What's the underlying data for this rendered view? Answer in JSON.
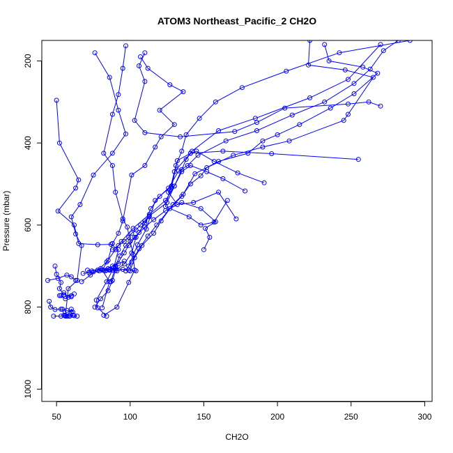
{
  "chart_data": {
    "type": "scatter",
    "title": "ATOM3 Northeast_Pacific_2 CH2O",
    "xlabel": "CH2O",
    "ylabel": "Pressure (mbar)",
    "xlim": [
      40,
      305
    ],
    "ylim": [
      1030,
      150
    ],
    "y_axis": "inverted",
    "x_ticks": [
      50,
      100,
      150,
      200,
      250,
      300
    ],
    "y_ticks": [
      200,
      400,
      600,
      800,
      1000
    ],
    "series_color": "#0000ff",
    "marker": "open-circle",
    "grid": false,
    "legend": "none",
    "series": [
      {
        "points": [
          [
            97,
            163
          ],
          [
            95,
            218
          ],
          [
            92,
            282
          ],
          [
            88,
            330
          ],
          [
            82,
            425
          ],
          [
            88,
            455
          ],
          [
            90,
            520
          ],
          [
            95,
            585
          ],
          [
            98,
            605
          ],
          [
            100,
            640
          ],
          [
            102,
            672
          ],
          [
            103,
            710
          ],
          [
            99,
            740
          ],
          [
            91,
            800
          ],
          [
            82,
            820
          ]
        ]
      },
      {
        "points": [
          [
            76,
            180
          ],
          [
            86,
            240
          ],
          [
            92,
            320
          ],
          [
            97,
            378
          ],
          [
            88,
            425
          ],
          [
            75,
            478
          ],
          [
            66,
            550
          ],
          [
            60,
            580
          ],
          [
            63,
            622
          ],
          [
            67,
            650
          ],
          [
            64,
            735
          ],
          [
            58,
            755
          ],
          [
            56,
            822
          ]
        ]
      },
      {
        "points": [
          [
            50,
            296
          ],
          [
            52,
            400
          ],
          [
            65,
            490
          ],
          [
            63,
            510
          ],
          [
            51,
            566
          ],
          [
            62,
            600
          ],
          [
            65,
            645
          ],
          [
            78,
            648
          ],
          [
            87,
            647
          ],
          [
            92,
            660
          ],
          [
            89,
            703
          ],
          [
            84,
            738
          ],
          [
            77,
            783
          ],
          [
            78,
            802
          ],
          [
            84,
            822
          ]
        ]
      },
      {
        "points": [
          [
            107,
            190
          ],
          [
            112,
            218
          ],
          [
            127,
            258
          ],
          [
            136,
            275
          ],
          [
            120,
            320
          ],
          [
            130,
            355
          ],
          [
            121,
            385
          ],
          [
            117,
            410
          ],
          [
            110,
            455
          ],
          [
            101,
            478
          ],
          [
            95,
            590
          ],
          [
            92,
            620
          ],
          [
            88,
            645
          ],
          [
            85,
            686
          ],
          [
            81,
            710
          ],
          [
            86,
            738
          ],
          [
            81,
            802
          ]
        ]
      },
      {
        "points": [
          [
            110,
            180
          ],
          [
            106,
            212
          ],
          [
            110,
            250
          ],
          [
            103,
            345
          ],
          [
            110,
            375
          ],
          [
            134,
            385
          ],
          [
            171,
            372
          ],
          [
            186,
            350
          ],
          [
            205,
            315
          ],
          [
            248,
            305
          ],
          [
            262,
            300
          ],
          [
            270,
            310
          ]
        ]
      },
      {
        "points": [
          [
            290,
            150
          ],
          [
            242,
            180
          ],
          [
            206,
            225
          ],
          [
            176,
            265
          ],
          [
            158,
            300
          ],
          [
            147,
            340
          ],
          [
            138,
            380
          ],
          [
            135,
            420
          ],
          [
            131,
            455
          ],
          [
            128,
            505
          ],
          [
            120,
            530
          ],
          [
            114,
            560
          ],
          [
            110,
            595
          ],
          [
            104,
            630
          ],
          [
            101,
            668
          ],
          [
            96,
            695
          ],
          [
            90,
            710
          ],
          [
            88,
            735
          ],
          [
            85,
            760
          ],
          [
            80,
            780
          ],
          [
            76,
            800
          ]
        ]
      },
      {
        "points": [
          [
            270,
            160
          ],
          [
            248,
            245
          ],
          [
            222,
            290
          ],
          [
            185,
            340
          ],
          [
            160,
            370
          ],
          [
            142,
            420
          ],
          [
            138,
            440
          ],
          [
            135,
            465
          ],
          [
            130,
            505
          ],
          [
            125,
            545
          ],
          [
            113,
            578
          ],
          [
            106,
            618
          ],
          [
            99,
            650
          ],
          [
            96,
            668
          ],
          [
            90,
            702
          ],
          [
            87,
            738
          ]
        ]
      },
      {
        "points": [
          [
            282,
            150
          ],
          [
            272,
            175
          ],
          [
            263,
            220
          ],
          [
            252,
            255
          ],
          [
            232,
            300
          ],
          [
            210,
            332
          ],
          [
            186,
            370
          ],
          [
            165,
            395
          ],
          [
            146,
            430
          ],
          [
            139,
            455
          ],
          [
            133,
            468
          ],
          [
            126,
            510
          ],
          [
            117,
            540
          ],
          [
            111,
            610
          ],
          [
            105,
            648
          ],
          [
            99,
            700
          ],
          [
            97,
            712
          ]
        ]
      },
      {
        "points": [
          [
            232,
            160
          ],
          [
            235,
            200
          ],
          [
            258,
            215
          ],
          [
            268,
            230
          ],
          [
            252,
            280
          ],
          [
            236,
            315
          ],
          [
            215,
            355
          ],
          [
            200,
            380
          ],
          [
            190,
            395
          ],
          [
            180,
            425
          ],
          [
            160,
            445
          ],
          [
            144,
            475
          ],
          [
            136,
            525
          ],
          [
            129,
            550
          ],
          [
            121,
            590
          ],
          [
            116,
            620
          ],
          [
            108,
            650
          ],
          [
            103,
            680
          ],
          [
            100,
            712
          ]
        ]
      },
      {
        "points": [
          [
            222,
            150
          ],
          [
            221,
            210
          ],
          [
            246,
            222
          ],
          [
            265,
            240
          ],
          [
            248,
            330
          ],
          [
            245,
            345
          ],
          [
            208,
            395
          ],
          [
            190,
            410
          ],
          [
            170,
            430
          ],
          [
            152,
            460
          ],
          [
            148,
            480
          ],
          [
            141,
            500
          ],
          [
            135,
            530
          ],
          [
            127,
            560
          ],
          [
            118,
            600
          ],
          [
            112,
            627
          ],
          [
            106,
            658
          ],
          [
            101,
            690
          ],
          [
            97,
            712
          ]
        ]
      },
      {
        "points": [
          [
            255,
            440
          ],
          [
            196,
            426
          ],
          [
            163,
            420
          ],
          [
            141,
            425
          ],
          [
            132,
            443
          ],
          [
            128,
            510
          ],
          [
            126,
            520
          ],
          [
            132,
            550
          ],
          [
            143,
            545
          ],
          [
            160,
            520
          ],
          [
            172,
            585
          ]
        ]
      },
      {
        "points": [
          [
            191,
            497
          ],
          [
            173,
            473
          ],
          [
            157,
            445
          ],
          [
            145,
            420
          ],
          [
            141,
            425
          ],
          [
            130,
            470
          ],
          [
            127,
            515
          ],
          [
            124,
            555
          ],
          [
            140,
            580
          ],
          [
            148,
            600
          ],
          [
            157,
            593
          ],
          [
            166,
            540
          ]
        ]
      },
      {
        "points": [
          [
            178,
            517
          ],
          [
            163,
            487
          ],
          [
            152,
            470
          ],
          [
            141,
            455
          ],
          [
            135,
            470
          ],
          [
            130,
            505
          ],
          [
            124,
            540
          ],
          [
            113,
            574
          ],
          [
            102,
            608
          ],
          [
            94,
            640
          ],
          [
            90,
            660
          ],
          [
            84,
            690
          ],
          [
            78,
            710
          ],
          [
            73,
            722
          ],
          [
            67,
            738
          ]
        ]
      },
      {
        "points": [
          [
            150,
            660
          ],
          [
            154,
            630
          ],
          [
            151,
            608
          ],
          [
            158,
            592
          ],
          [
            148,
            560
          ],
          [
            135,
            545
          ],
          [
            124,
            565
          ],
          [
            116,
            587
          ],
          [
            110,
            605
          ],
          [
            103,
            630
          ],
          [
            97,
            650
          ],
          [
            93,
            675
          ],
          [
            90,
            700
          ],
          [
            86,
            710
          ],
          [
            83,
            712
          ]
        ]
      },
      {
        "points": [
          [
            78,
            710
          ],
          [
            84,
            710
          ],
          [
            88,
            710
          ],
          [
            91,
            712
          ],
          [
            95,
            708
          ],
          [
            99,
            710
          ],
          [
            104,
            712
          ],
          [
            90,
            706
          ],
          [
            86,
            708
          ],
          [
            80,
            706
          ],
          [
            74,
            712
          ],
          [
            71,
            710
          ]
        ]
      },
      {
        "points": [
          [
            96,
            688
          ],
          [
            92,
            694
          ],
          [
            88,
            700
          ],
          [
            85,
            706
          ],
          [
            82,
            710
          ],
          [
            79,
            712
          ],
          [
            75,
            714
          ],
          [
            72,
            716
          ],
          [
            68,
            718
          ]
        ]
      },
      {
        "points": [
          [
            88,
            660
          ],
          [
            92,
            650
          ],
          [
            96,
            640
          ],
          [
            99,
            630
          ],
          [
            101,
            620
          ],
          [
            104,
            612
          ],
          [
            107,
            600
          ],
          [
            110,
            590
          ],
          [
            113,
            580
          ]
        ]
      },
      {
        "points": [
          [
            53,
            772
          ],
          [
            55,
            765
          ],
          [
            58,
            776
          ],
          [
            60,
            772
          ],
          [
            62,
            768
          ],
          [
            56,
            780
          ],
          [
            52,
            772
          ]
        ]
      },
      {
        "points": [
          [
            45,
            786
          ],
          [
            46,
            800
          ],
          [
            49,
            806
          ],
          [
            53,
            805
          ],
          [
            57,
            808
          ],
          [
            60,
            812
          ],
          [
            61,
            820
          ],
          [
            58,
            822
          ]
        ]
      },
      {
        "points": [
          [
            48,
            822
          ],
          [
            53,
            822
          ],
          [
            56,
            820
          ],
          [
            59,
            822
          ],
          [
            62,
            821
          ],
          [
            64,
            822
          ]
        ]
      },
      {
        "points": [
          [
            49,
            700
          ],
          [
            50,
            720
          ],
          [
            53,
            740
          ],
          [
            52,
            755
          ],
          [
            55,
            770
          ],
          [
            60,
            775
          ]
        ]
      },
      {
        "points": [
          [
            44,
            735
          ],
          [
            51,
            730
          ],
          [
            57,
            722
          ],
          [
            60,
            726
          ],
          [
            63,
            735
          ]
        ]
      },
      {
        "points": [
          [
            54,
            805
          ],
          [
            55,
            820
          ],
          [
            57,
            822
          ],
          [
            60,
            805
          ],
          [
            61,
            812
          ]
        ]
      }
    ]
  }
}
